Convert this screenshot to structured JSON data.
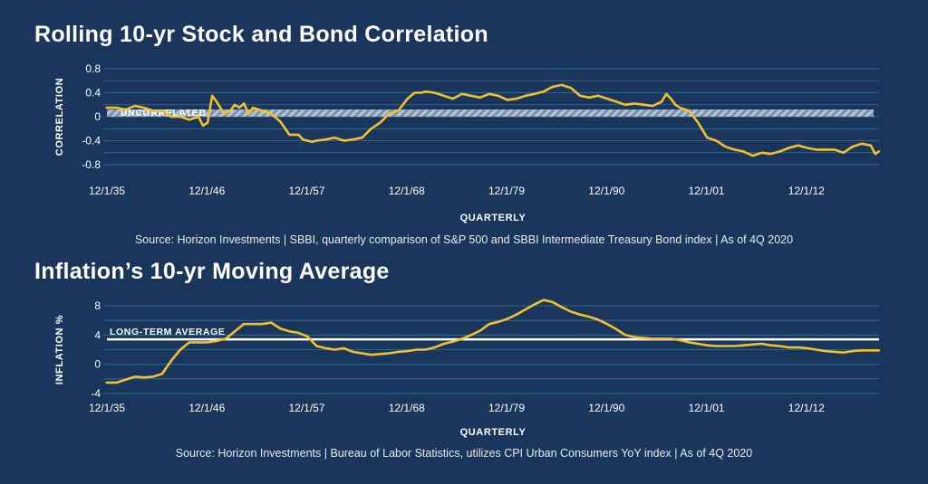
{
  "colors": {
    "background": "#1b365d",
    "grid": "#3d7fa0",
    "line": "#f2c12e",
    "band": "#8ea4bb",
    "refline": "#ffffff"
  },
  "chart_data": [
    {
      "type": "line",
      "title": "Rolling 10-yr Stock and Bond Correlation",
      "xlabel": "QUARTERLY",
      "ylabel": "CORRELATION",
      "xlim": [
        1935.92,
        2020.92
      ],
      "ylim": [
        -0.8,
        0.8
      ],
      "y_ticks": [
        0.8,
        0.4,
        0,
        -0.4,
        -0.8
      ],
      "y_tick_labels": [
        "0.8",
        "0.4",
        "0",
        "-0.4",
        "-0.8"
      ],
      "x_ticks": [
        1935.92,
        1946.92,
        1957.92,
        1968.92,
        1979.92,
        1990.92,
        2001.92,
        2012.92
      ],
      "x_tick_labels": [
        "12/1/35",
        "12/1/46",
        "12/1/57",
        "12/1/68",
        "12/1/79",
        "12/1/90",
        "12/1/01",
        "12/1/12"
      ],
      "grid": true,
      "annotation": {
        "label": "UNCORRELATED",
        "band": [
          0,
          0.12
        ]
      },
      "source": "Source: Horizon Investments | SBBI, quarterly comparison of S&P 500 and SBBI Intermediate Treasury Bond index | As of 4Q 2020",
      "series": [
        {
          "x": [
            1935.9,
            1937,
            1938,
            1939,
            1940,
            1941,
            1942,
            1943,
            1944,
            1945,
            1946,
            1946.5,
            1947,
            1947.5,
            1948,
            1948.8,
            1949.5,
            1950,
            1950.5,
            1951,
            1951.5,
            1952,
            1953,
            1954,
            1955,
            1956,
            1957,
            1957.5,
            1958,
            1958.5,
            1959,
            1960,
            1961,
            1962,
            1963,
            1964,
            1965,
            1966,
            1967,
            1968,
            1969,
            1969.8,
            1970.5,
            1971,
            1972,
            1973,
            1974,
            1975,
            1976,
            1977,
            1978,
            1979,
            1980,
            1981,
            1982,
            1983,
            1984,
            1985,
            1986,
            1987,
            1988,
            1989,
            1990,
            1991,
            1992,
            1993,
            1994,
            1995,
            1996,
            1997,
            1997.5,
            1998,
            1998.5,
            1999,
            2000,
            2001,
            2002,
            2003,
            2004,
            2005,
            2006,
            2007,
            2008,
            2009,
            2010,
            2011,
            2012,
            2013,
            2014,
            2015,
            2016,
            2017,
            2018,
            2019,
            2020,
            2020.5,
            2020.9
          ],
          "y": [
            0.15,
            0.15,
            0.12,
            0.18,
            0.15,
            0.1,
            0.1,
            0.0,
            0.0,
            -0.05,
            0.0,
            -0.15,
            -0.1,
            0.35,
            0.25,
            0.05,
            0.1,
            0.2,
            0.15,
            0.22,
            0.05,
            0.15,
            0.1,
            0.05,
            -0.08,
            -0.3,
            -0.3,
            -0.38,
            -0.4,
            -0.42,
            -0.4,
            -0.38,
            -0.35,
            -0.4,
            -0.38,
            -0.35,
            -0.2,
            -0.1,
            0.05,
            0.1,
            0.3,
            0.4,
            0.4,
            0.42,
            0.4,
            0.35,
            0.3,
            0.38,
            0.35,
            0.32,
            0.38,
            0.35,
            0.28,
            0.3,
            0.35,
            0.38,
            0.42,
            0.5,
            0.53,
            0.48,
            0.35,
            0.32,
            0.35,
            0.3,
            0.25,
            0.2,
            0.22,
            0.2,
            0.18,
            0.25,
            0.38,
            0.3,
            0.2,
            0.15,
            0.1,
            -0.1,
            -0.35,
            -0.4,
            -0.5,
            -0.55,
            -0.58,
            -0.65,
            -0.6,
            -0.62,
            -0.58,
            -0.52,
            -0.48,
            -0.52,
            -0.55,
            -0.55,
            -0.55,
            -0.6,
            -0.5,
            -0.45,
            -0.48,
            -0.62,
            -0.58
          ]
        }
      ]
    },
    {
      "type": "line",
      "title": "Inflation’s 10-yr Moving Average",
      "xlabel": "QUARTERLY",
      "ylabel": "INFLATION %",
      "xlim": [
        1935.92,
        2020.92
      ],
      "ylim": [
        -4,
        8
      ],
      "y_ticks": [
        8,
        4,
        0,
        -4
      ],
      "y_tick_labels": [
        "8",
        "4",
        "0",
        "-4"
      ],
      "x_ticks": [
        1935.92,
        1946.92,
        1957.92,
        1968.92,
        1979.92,
        1990.92,
        2001.92,
        2012.92
      ],
      "x_tick_labels": [
        "12/1/35",
        "12/1/46",
        "12/1/57",
        "12/1/68",
        "12/1/79",
        "12/1/90",
        "12/1/01",
        "12/1/12"
      ],
      "grid": true,
      "annotation": {
        "label": "LONG-TERM AVERAGE",
        "value": 3.4
      },
      "source": "Source: Horizon Investments | Bureau of Labor Statistics, utilizes CPI Urban Consumers YoY index | As of 4Q 2020",
      "series": [
        {
          "x": [
            1935.9,
            1937,
            1938,
            1939,
            1940,
            1941,
            1942,
            1943,
            1944,
            1945,
            1946,
            1947,
            1948,
            1949,
            1950,
            1951,
            1952,
            1953,
            1954,
            1955,
            1956,
            1957,
            1958,
            1959,
            1960,
            1961,
            1962,
            1963,
            1964,
            1965,
            1966,
            1967,
            1968,
            1969,
            1970,
            1971,
            1972,
            1973,
            1974,
            1975,
            1976,
            1977,
            1978,
            1979,
            1980,
            1981,
            1982,
            1983,
            1984,
            1985,
            1986,
            1987,
            1988,
            1989,
            1990,
            1991,
            1992,
            1993,
            1994,
            1995,
            1996,
            1997,
            1998,
            1999,
            2000,
            2001,
            2002,
            2003,
            2004,
            2005,
            2006,
            2007,
            2008,
            2009,
            2010,
            2011,
            2012,
            2013,
            2014,
            2015,
            2016,
            2017,
            2018,
            2019,
            2020,
            2020.9
          ],
          "y": [
            -2.5,
            -2.5,
            -2.1,
            -1.7,
            -1.8,
            -1.7,
            -1.3,
            0.5,
            2.0,
            3.0,
            3.0,
            3.0,
            3.2,
            3.5,
            4.5,
            5.5,
            5.5,
            5.5,
            5.7,
            4.9,
            4.5,
            4.3,
            3.8,
            2.5,
            2.2,
            2.0,
            2.2,
            1.7,
            1.5,
            1.3,
            1.4,
            1.5,
            1.7,
            1.8,
            2.0,
            2.0,
            2.3,
            2.8,
            3.1,
            3.5,
            4.0,
            4.6,
            5.5,
            5.8,
            6.2,
            6.8,
            7.5,
            8.2,
            8.8,
            8.5,
            7.8,
            7.2,
            6.8,
            6.5,
            6.1,
            5.5,
            4.8,
            4.0,
            3.7,
            3.6,
            3.5,
            3.5,
            3.5,
            3.3,
            3.0,
            2.8,
            2.6,
            2.5,
            2.5,
            2.5,
            2.6,
            2.7,
            2.8,
            2.6,
            2.5,
            2.3,
            2.3,
            2.2,
            2.0,
            1.8,
            1.7,
            1.6,
            1.8,
            1.9,
            1.9,
            1.9
          ]
        }
      ]
    }
  ]
}
